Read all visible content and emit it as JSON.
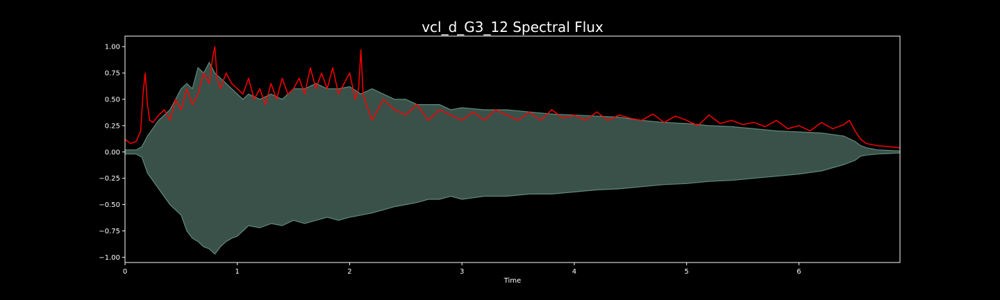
{
  "chart_data": {
    "type": "line",
    "title": "vcl_d_G3_12 Spectral Flux",
    "xlabel": "Time",
    "ylabel": "",
    "xlim": [
      0,
      6.9
    ],
    "ylim": [
      -1.05,
      1.1
    ],
    "x_ticks": [
      0,
      1,
      2,
      3,
      4,
      5,
      6
    ],
    "x_tick_labels": [
      "0",
      "1",
      "2",
      "3",
      "4",
      "5",
      "6"
    ],
    "y_ticks": [
      -1.0,
      -0.75,
      -0.5,
      -0.25,
      0.0,
      0.25,
      0.5,
      0.75,
      1.0
    ],
    "y_tick_labels": [
      "−1.00",
      "−0.75",
      "−0.50",
      "−0.25",
      "0.00",
      "0.25",
      "0.50",
      "0.75",
      "1.00"
    ],
    "grid": false,
    "colors": {
      "background": "#000000",
      "axes": "#ffffff",
      "waveform": "#3a5149",
      "waveform_edge": "#5e8a7f",
      "flux": "#ff0000"
    },
    "series": [
      {
        "kind": "waveform-envelope",
        "x": [
          0,
          0.1,
          0.15,
          0.2,
          0.3,
          0.4,
          0.5,
          0.55,
          0.6,
          0.65,
          0.7,
          0.75,
          0.8,
          0.85,
          0.9,
          0.95,
          1.0,
          1.05,
          1.1,
          1.2,
          1.3,
          1.4,
          1.5,
          1.6,
          1.7,
          1.8,
          1.9,
          2.0,
          2.1,
          2.2,
          2.3,
          2.4,
          2.5,
          2.6,
          2.7,
          2.8,
          2.9,
          3.0,
          3.2,
          3.4,
          3.6,
          3.8,
          4.0,
          4.2,
          4.4,
          4.6,
          4.8,
          5.0,
          5.2,
          5.4,
          5.6,
          5.8,
          6.0,
          6.2,
          6.4,
          6.5,
          6.55,
          6.6,
          6.7,
          6.9
        ],
        "upper": [
          0.02,
          0.02,
          0.05,
          0.15,
          0.3,
          0.4,
          0.6,
          0.65,
          0.6,
          0.8,
          0.75,
          0.85,
          0.75,
          0.7,
          0.65,
          0.6,
          0.55,
          0.5,
          0.55,
          0.5,
          0.55,
          0.5,
          0.6,
          0.6,
          0.65,
          0.6,
          0.6,
          0.62,
          0.55,
          0.6,
          0.55,
          0.5,
          0.5,
          0.45,
          0.45,
          0.45,
          0.4,
          0.42,
          0.4,
          0.4,
          0.38,
          0.36,
          0.35,
          0.34,
          0.33,
          0.3,
          0.28,
          0.27,
          0.25,
          0.24,
          0.22,
          0.2,
          0.19,
          0.18,
          0.15,
          0.1,
          0.06,
          0.04,
          0.02,
          0.01
        ],
        "lower": [
          -0.02,
          -0.02,
          -0.05,
          -0.2,
          -0.35,
          -0.5,
          -0.6,
          -0.75,
          -0.82,
          -0.85,
          -0.9,
          -0.92,
          -0.97,
          -0.9,
          -0.85,
          -0.82,
          -0.8,
          -0.75,
          -0.7,
          -0.72,
          -0.68,
          -0.7,
          -0.65,
          -0.68,
          -0.65,
          -0.62,
          -0.65,
          -0.62,
          -0.6,
          -0.58,
          -0.55,
          -0.52,
          -0.5,
          -0.48,
          -0.45,
          -0.45,
          -0.42,
          -0.45,
          -0.42,
          -0.42,
          -0.4,
          -0.4,
          -0.38,
          -0.36,
          -0.35,
          -0.33,
          -0.31,
          -0.3,
          -0.28,
          -0.27,
          -0.25,
          -0.23,
          -0.21,
          -0.18,
          -0.12,
          -0.08,
          -0.04,
          -0.03,
          -0.02,
          -0.01
        ]
      },
      {
        "kind": "spectral-flux",
        "x": [
          0,
          0.05,
          0.1,
          0.14,
          0.16,
          0.18,
          0.2,
          0.22,
          0.25,
          0.3,
          0.35,
          0.4,
          0.45,
          0.5,
          0.55,
          0.6,
          0.65,
          0.7,
          0.75,
          0.78,
          0.8,
          0.82,
          0.85,
          0.9,
          0.95,
          1.0,
          1.05,
          1.1,
          1.15,
          1.2,
          1.25,
          1.3,
          1.35,
          1.4,
          1.45,
          1.5,
          1.55,
          1.6,
          1.65,
          1.7,
          1.75,
          1.8,
          1.85,
          1.9,
          1.95,
          2.0,
          2.05,
          2.08,
          2.1,
          2.12,
          2.15,
          2.2,
          2.3,
          2.4,
          2.5,
          2.6,
          2.7,
          2.8,
          2.9,
          3.0,
          3.1,
          3.2,
          3.3,
          3.4,
          3.5,
          3.6,
          3.7,
          3.8,
          3.9,
          4.0,
          4.1,
          4.2,
          4.3,
          4.4,
          4.5,
          4.6,
          4.7,
          4.8,
          4.9,
          5.0,
          5.1,
          5.2,
          5.3,
          5.4,
          5.5,
          5.6,
          5.7,
          5.8,
          5.9,
          6.0,
          6.1,
          6.2,
          6.3,
          6.4,
          6.45,
          6.5,
          6.55,
          6.6,
          6.7,
          6.8,
          6.9
        ],
        "y": [
          0.12,
          0.08,
          0.1,
          0.2,
          0.55,
          0.75,
          0.45,
          0.3,
          0.28,
          0.35,
          0.4,
          0.3,
          0.5,
          0.4,
          0.6,
          0.45,
          0.55,
          0.75,
          0.65,
          0.9,
          1.0,
          0.7,
          0.6,
          0.75,
          0.65,
          0.6,
          0.55,
          0.7,
          0.5,
          0.6,
          0.45,
          0.65,
          0.5,
          0.7,
          0.55,
          0.6,
          0.7,
          0.55,
          0.8,
          0.6,
          0.75,
          0.6,
          0.8,
          0.55,
          0.65,
          0.75,
          0.5,
          0.6,
          0.97,
          0.55,
          0.45,
          0.3,
          0.5,
          0.4,
          0.35,
          0.45,
          0.3,
          0.4,
          0.35,
          0.3,
          0.38,
          0.3,
          0.4,
          0.35,
          0.3,
          0.38,
          0.3,
          0.4,
          0.32,
          0.35,
          0.3,
          0.38,
          0.3,
          0.35,
          0.32,
          0.3,
          0.36,
          0.28,
          0.34,
          0.3,
          0.25,
          0.35,
          0.27,
          0.3,
          0.26,
          0.28,
          0.24,
          0.3,
          0.22,
          0.25,
          0.2,
          0.28,
          0.22,
          0.26,
          0.3,
          0.2,
          0.12,
          0.08,
          0.06,
          0.05,
          0.04
        ]
      }
    ]
  }
}
